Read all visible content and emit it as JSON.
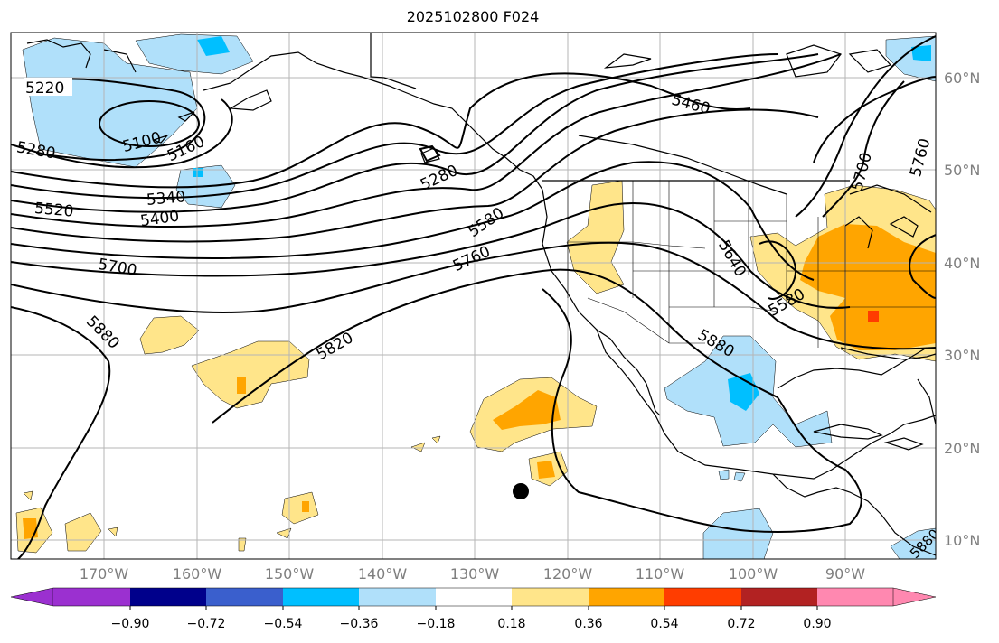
{
  "title": "2025102800 F024",
  "lat_labels": [
    "60°N",
    "50°N",
    "40°N",
    "30°N",
    "20°N",
    "10°N"
  ],
  "lon_labels": [
    "170°W",
    "160°W",
    "150°W",
    "140°W",
    "130°W",
    "120°W",
    "110°W",
    "100°W",
    "90°W"
  ],
  "contour_labels": [
    "5220",
    "5100",
    "5160",
    "5280",
    "5280",
    "5340",
    "5400",
    "5460",
    "5520",
    "5580",
    "5580",
    "5640",
    "5700",
    "5700",
    "5760",
    "5760",
    "5820",
    "5880",
    "5880",
    "5880"
  ],
  "colorbar": {
    "tick_labels": [
      "−0.90",
      "−0.72",
      "−0.54",
      "−0.36",
      "−0.18",
      "0.18",
      "0.36",
      "0.54",
      "0.72",
      "0.90"
    ],
    "colors": [
      "#9b30d0",
      "#00008b",
      "#3a5fcd",
      "#00bfff",
      "#b0e0fa",
      "#ffffff",
      "#ffe58a",
      "#ffa500",
      "#ff3d00",
      "#b22222",
      "#ff88b0"
    ]
  },
  "fill_colors": {
    "light_blue": "#b0e0fa",
    "blue": "#00bfff",
    "light_yellow": "#ffe58a",
    "orange": "#ffa500",
    "red_orange": "#ff3d00"
  },
  "marker": "black-dot"
}
